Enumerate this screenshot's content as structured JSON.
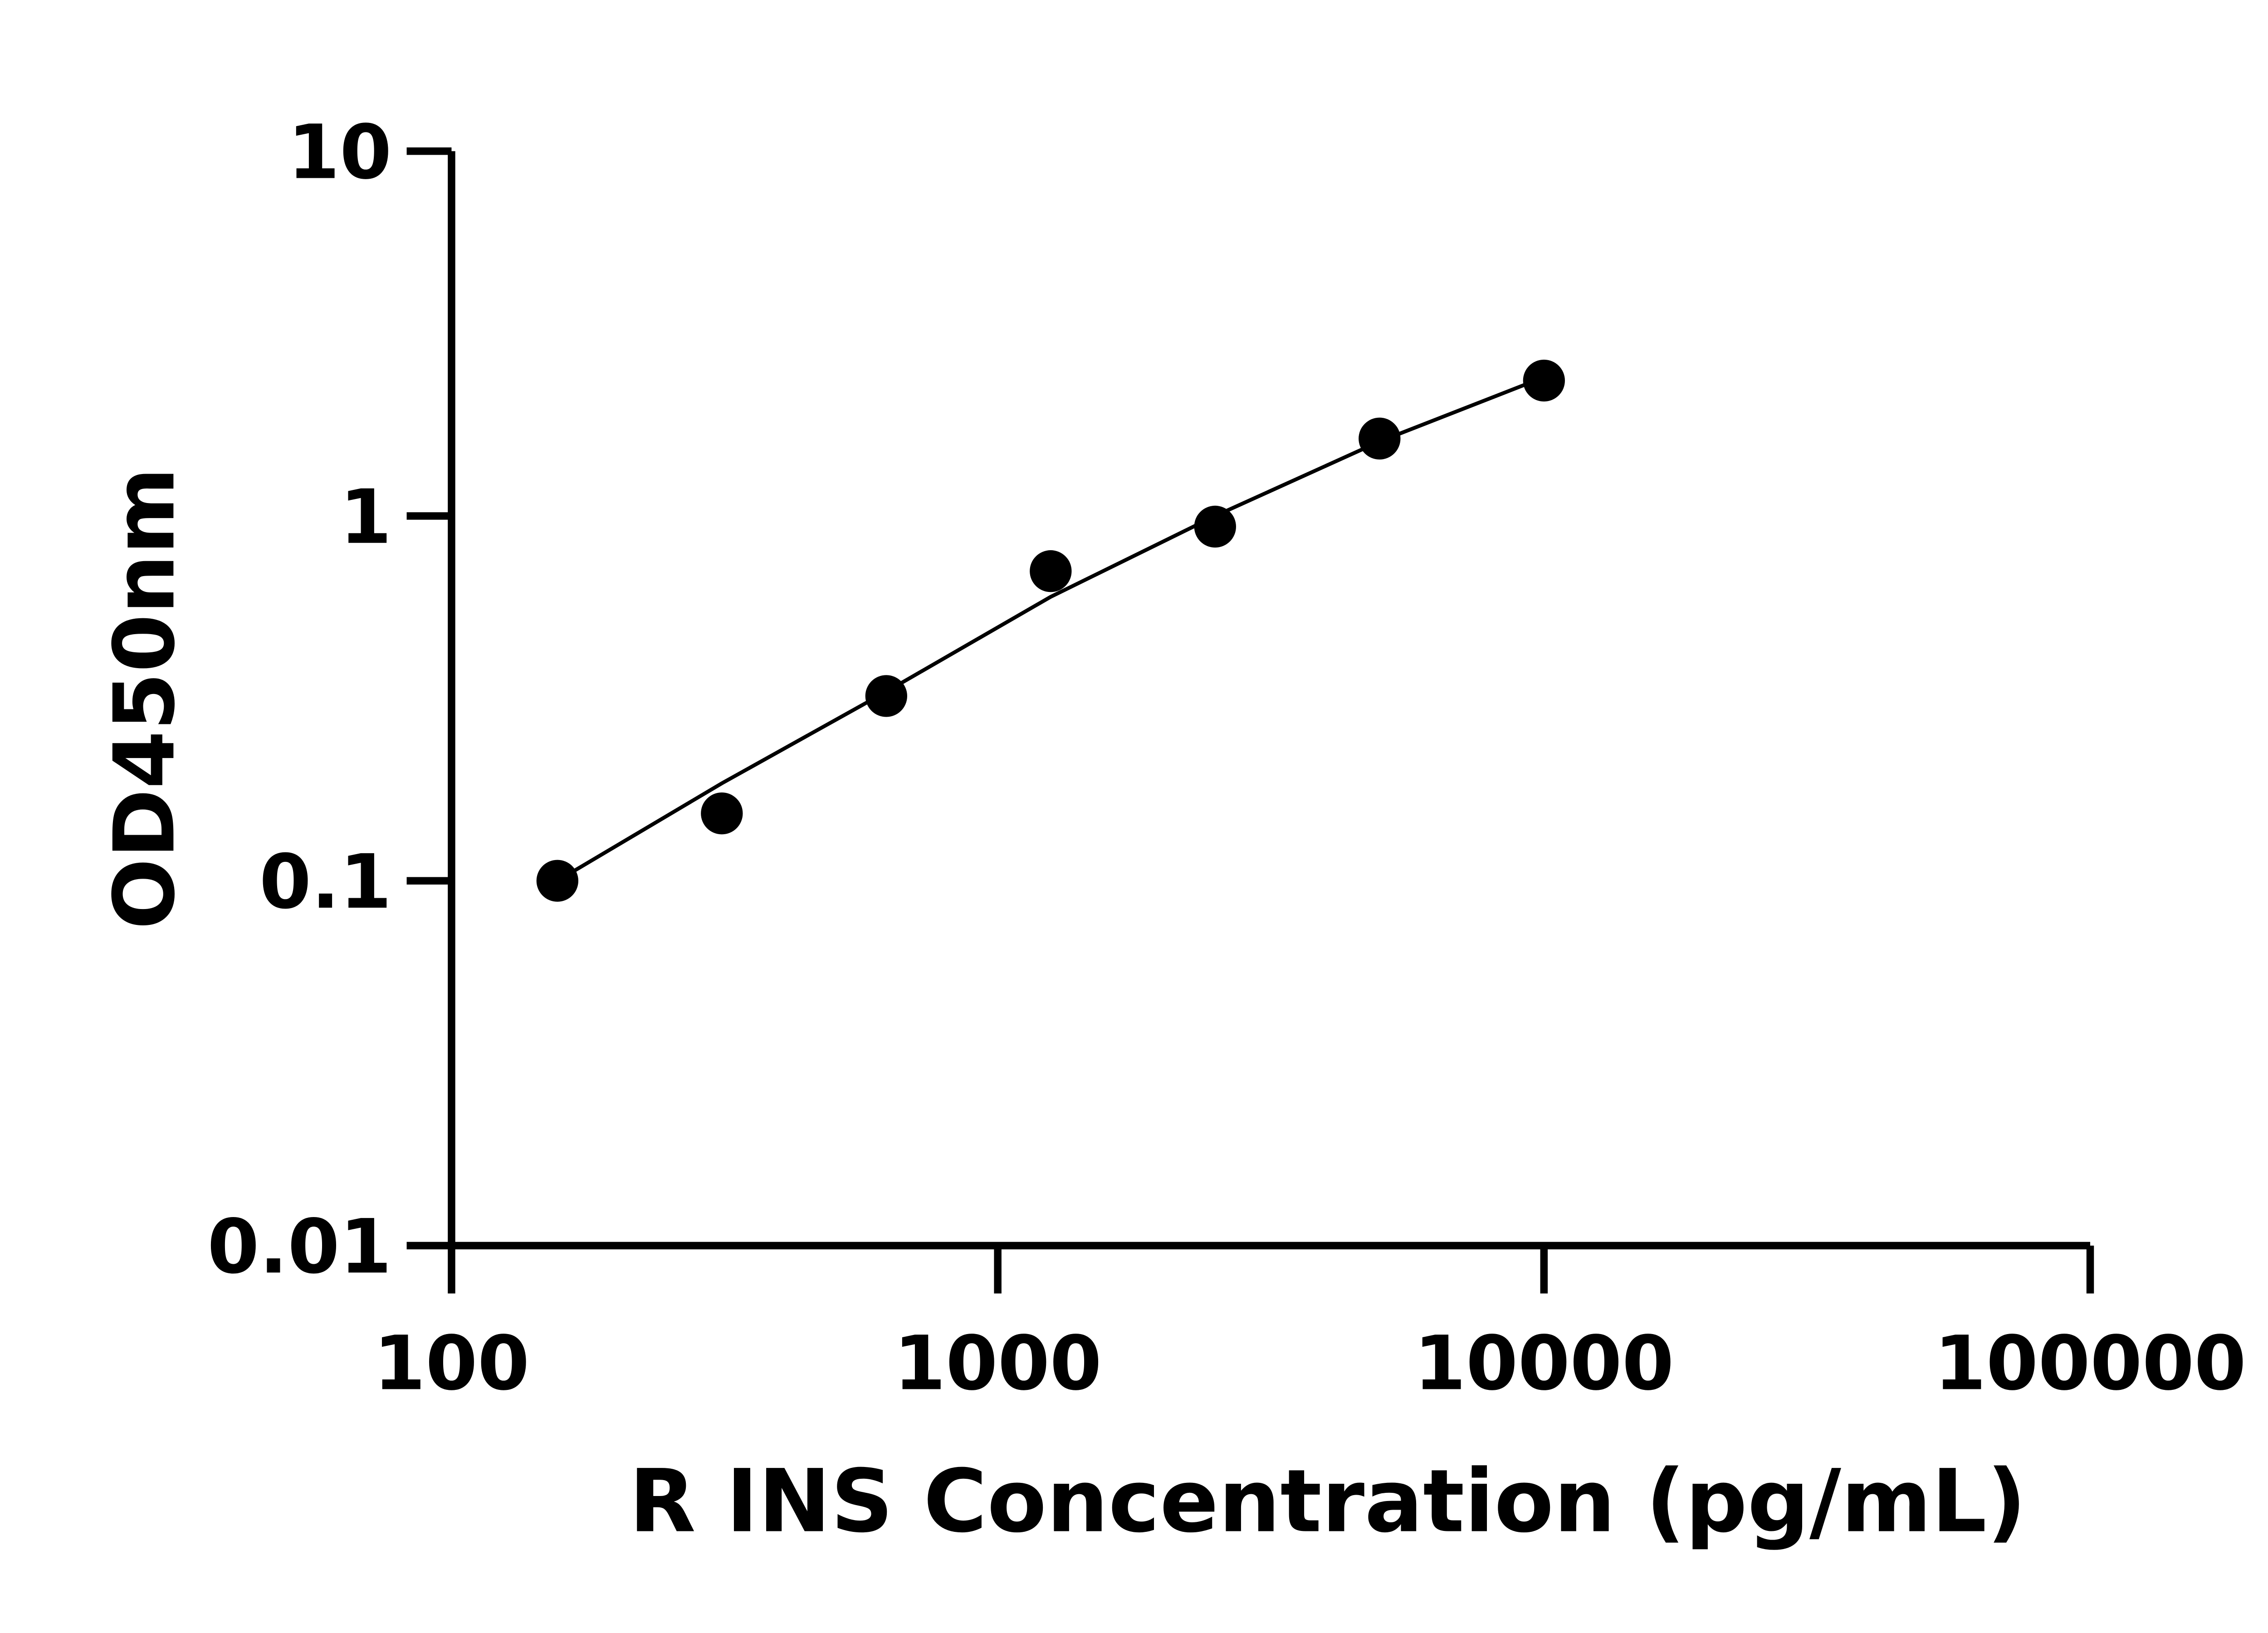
{
  "chart_data": {
    "type": "scatter",
    "title": "",
    "xlabel": "R INS Concentration (pg/mL)",
    "ylabel": "OD450nm",
    "x_scale": "log",
    "y_scale": "log",
    "xlim": [
      100,
      100000
    ],
    "ylim": [
      0.01,
      10
    ],
    "x_ticks": [
      100,
      1000,
      10000,
      100000
    ],
    "x_tick_labels": [
      "100",
      "1000",
      "10000",
      "100000"
    ],
    "y_ticks": [
      0.01,
      0.1,
      1,
      10
    ],
    "y_tick_labels": [
      "0.01",
      "0.1",
      "1",
      "10"
    ],
    "grid": false,
    "series": [
      {
        "x": [
          156.25,
          312.5,
          625,
          1250,
          2500,
          5000,
          10000
        ],
        "y": [
          0.1,
          0.153,
          0.321,
          0.706,
          0.935,
          1.63,
          2.35
        ],
        "marker": "circle",
        "color": "#000000"
      }
    ],
    "fit_curve": {
      "x": [
        156.25,
        312.5,
        625,
        1250,
        2500,
        5000,
        10000
      ],
      "y": [
        0.1,
        0.185,
        0.33,
        0.6,
        1.0,
        1.6,
        2.4
      ],
      "color": "#000000"
    }
  }
}
